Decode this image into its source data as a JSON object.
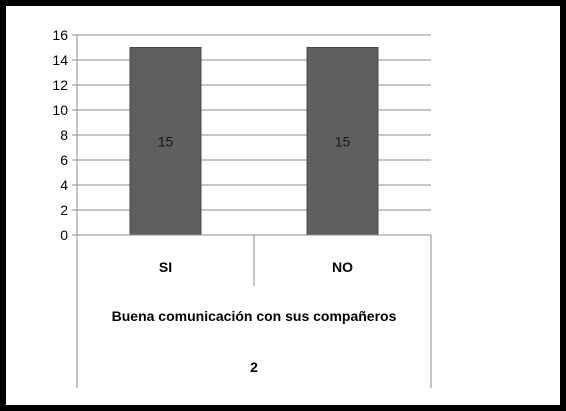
{
  "chart_data": {
    "type": "bar",
    "categories": [
      "SI",
      "NO"
    ],
    "values": [
      15,
      15
    ],
    "data_labels": [
      "15",
      "15"
    ],
    "group_label": "Buena comunicación con sus compañeros",
    "group_number": "2",
    "ylim": [
      0,
      16
    ],
    "yticks": [
      0,
      2,
      4,
      6,
      8,
      10,
      12,
      14,
      16
    ],
    "grid": true,
    "legend": "none",
    "colors": {
      "bar": "#5f5f5f",
      "bar_stroke": "#4a4a4a",
      "grid": "#8c8c8c",
      "axis": "#8c8c8c"
    }
  }
}
